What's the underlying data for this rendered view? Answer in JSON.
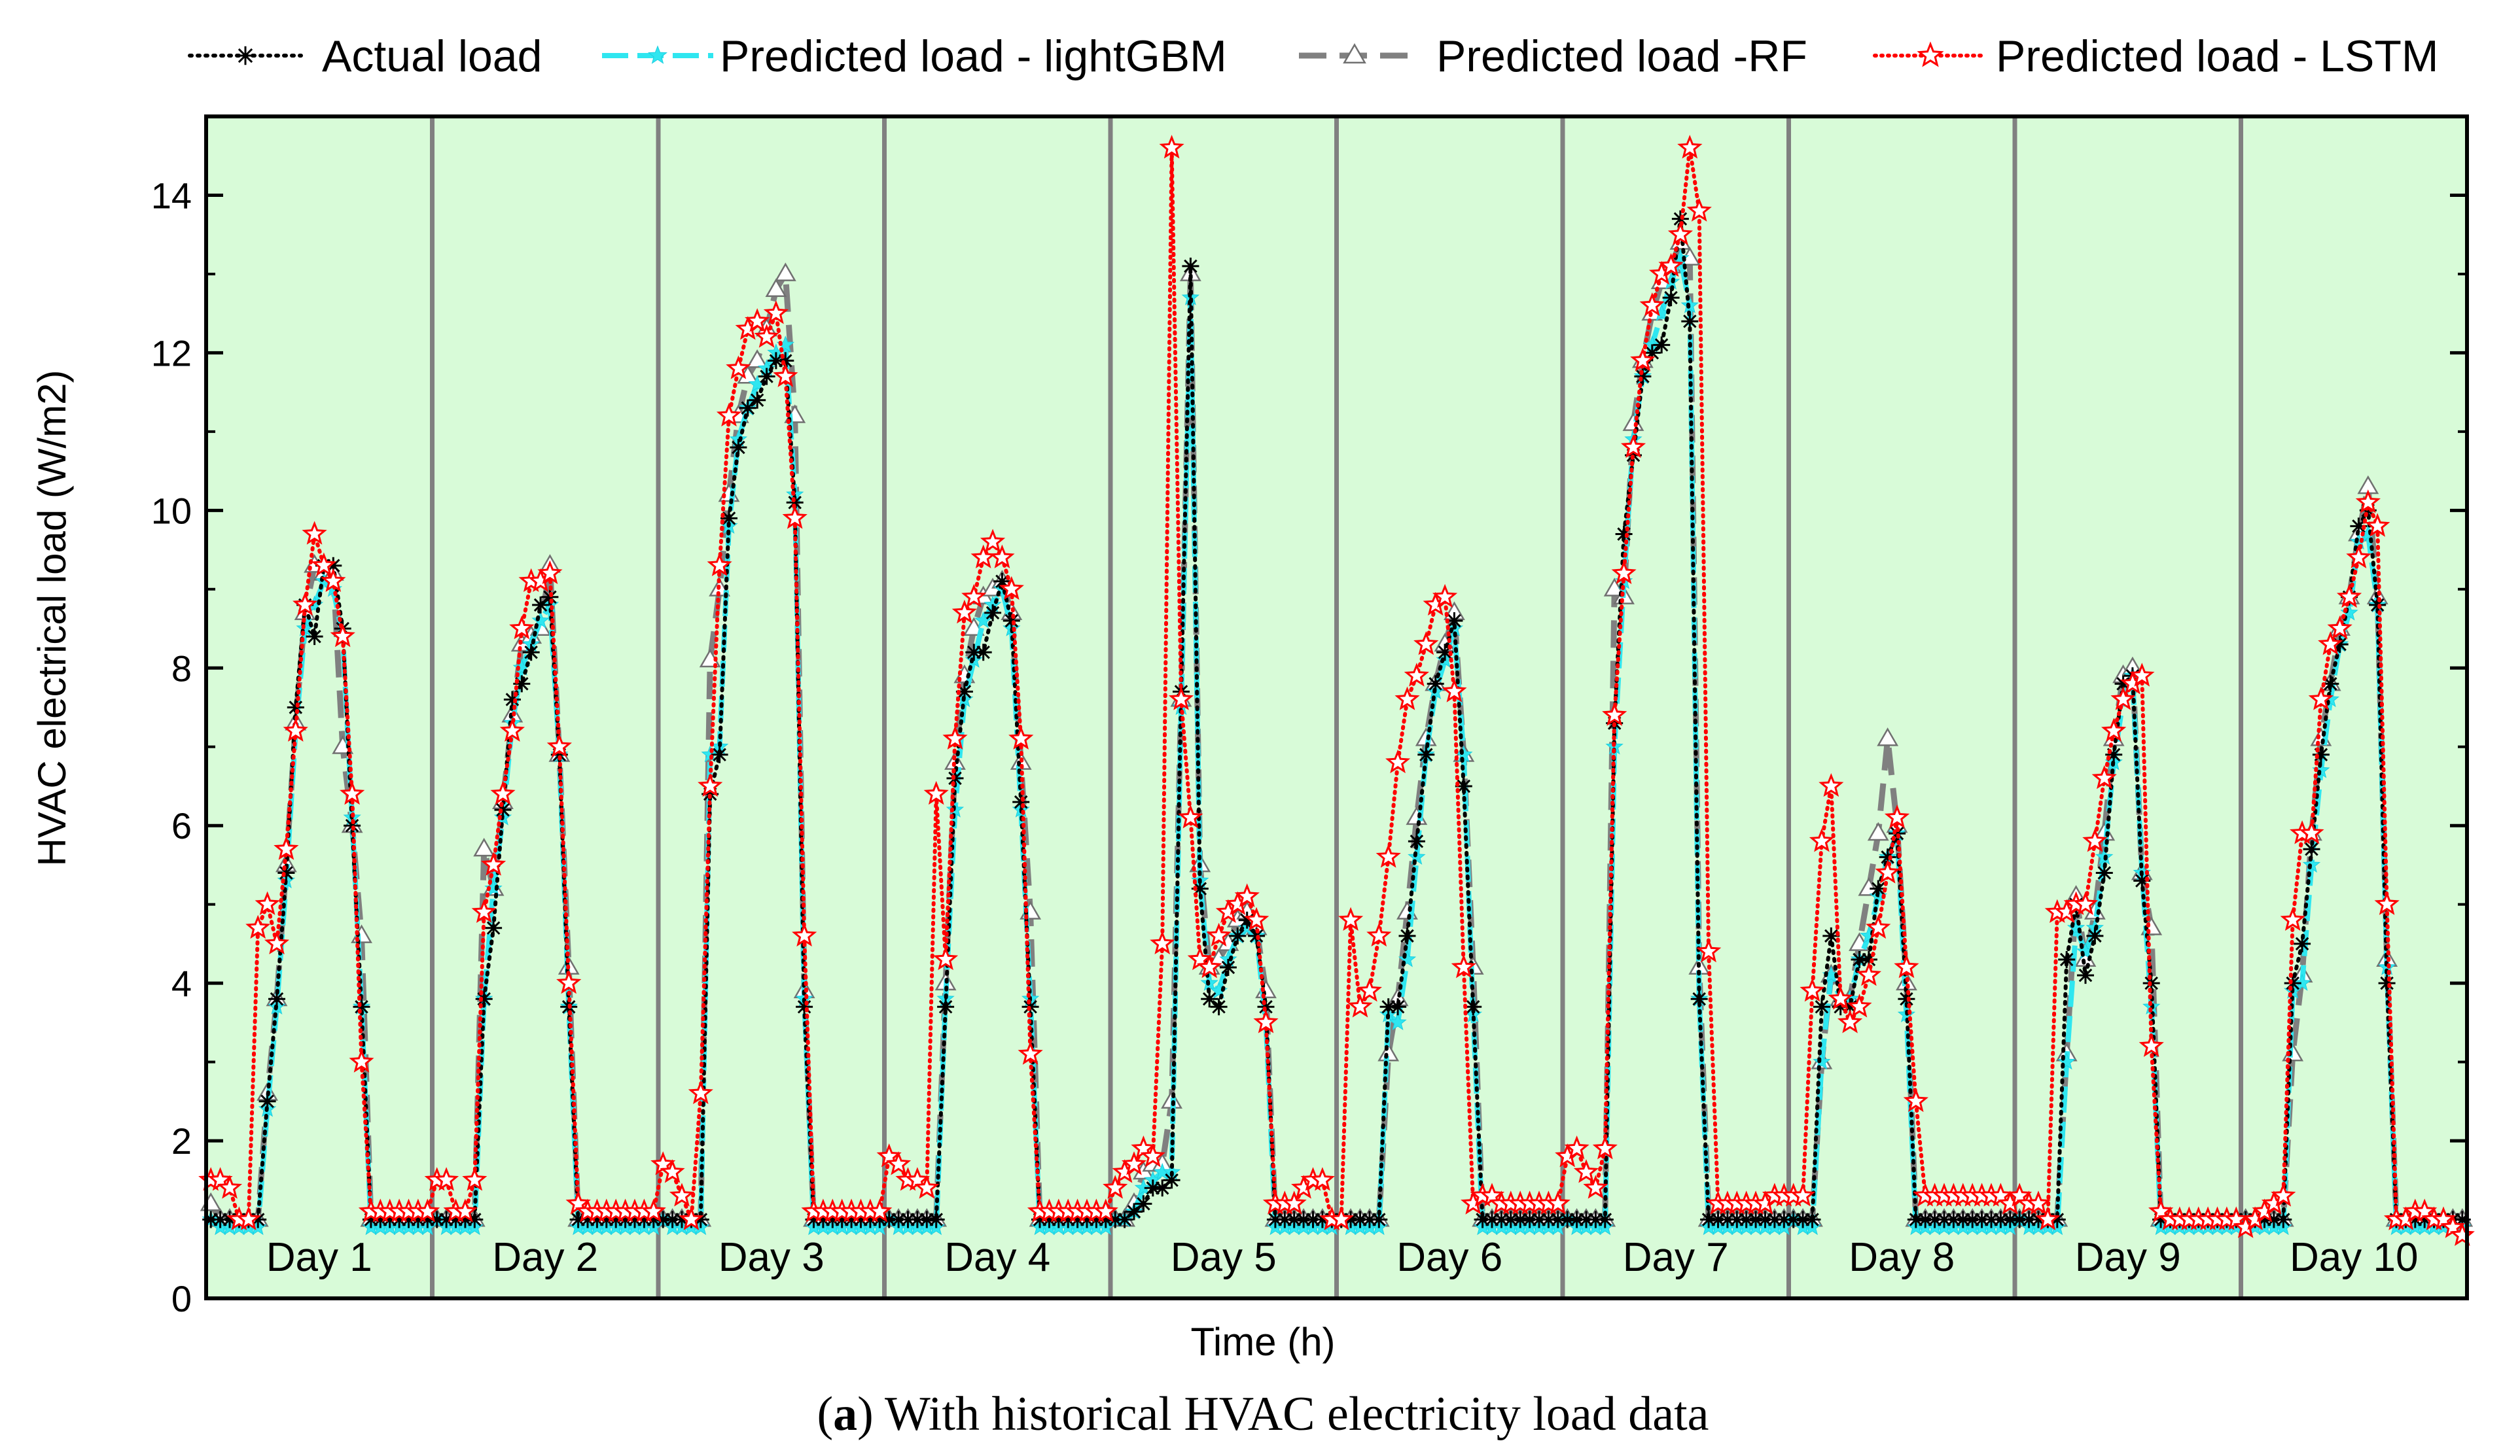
{
  "chart_data": {
    "type": "line",
    "title": "",
    "xlabel": "Time (h)",
    "ylabel": "HVAC electrical load (W/m2)",
    "ylim": [
      0,
      15
    ],
    "yticks": [
      0,
      2,
      4,
      6,
      8,
      10,
      12,
      14
    ],
    "yticks_minor": [
      1,
      3,
      5,
      7,
      9,
      11,
      13
    ],
    "hours_per_day": 24,
    "days": [
      "Day 1",
      "Day 2",
      "Day 3",
      "Day 4",
      "Day 5",
      "Day 6",
      "Day 7",
      "Day 8",
      "Day 9",
      "Day 10"
    ],
    "caption": {
      "letter": "a",
      "text": " With historical HVAC electricity load data"
    },
    "legend": [
      {
        "name": "Actual load",
        "color": "#000000",
        "marker": "asterisk"
      },
      {
        "name": "Predicted load - lightGBM",
        "color": "#2fe6f0",
        "marker": "star-small"
      },
      {
        "name": "Predicted load -RF",
        "color": "#808080",
        "marker": "triangle"
      },
      {
        "name": "Predicted load - LSTM",
        "color": "#ff0000",
        "marker": "star-open"
      }
    ],
    "background_color": "#d8fbd8",
    "series": [
      {
        "name": "Actual load",
        "values": [
          1.0,
          1.0,
          1.0,
          1.0,
          1.0,
          1.0,
          2.5,
          3.8,
          5.4,
          7.5,
          8.8,
          8.4,
          9.3,
          9.3,
          8.5,
          6.0,
          3.7,
          1.0,
          1.0,
          1.0,
          1.0,
          1.0,
          1.0,
          1.0,
          1.0,
          1.0,
          1.0,
          1.0,
          1.0,
          3.8,
          4.7,
          6.2,
          7.6,
          7.8,
          8.2,
          8.8,
          8.9,
          6.9,
          3.7,
          1.0,
          1.0,
          1.0,
          1.0,
          1.0,
          1.0,
          1.0,
          1.0,
          1.0,
          1.0,
          1.0,
          1.0,
          1.0,
          1.0,
          6.4,
          6.9,
          9.9,
          10.8,
          11.3,
          11.4,
          11.7,
          11.9,
          11.9,
          10.1,
          3.7,
          1.0,
          1.0,
          1.0,
          1.0,
          1.0,
          1.0,
          1.0,
          1.0,
          1.0,
          1.0,
          1.0,
          1.0,
          1.0,
          1.0,
          3.7,
          6.6,
          7.7,
          8.2,
          8.2,
          8.7,
          9.1,
          8.6,
          6.3,
          3.7,
          1.0,
          1.0,
          1.0,
          1.0,
          1.0,
          1.0,
          1.0,
          1.0,
          1.0,
          1.0,
          1.1,
          1.2,
          1.4,
          1.4,
          1.5,
          7.7,
          13.1,
          5.2,
          3.8,
          3.7,
          4.2,
          4.6,
          4.8,
          4.6,
          3.7,
          1.0,
          1.0,
          1.0,
          1.0,
          1.0,
          1.0,
          1.0,
          1.0,
          1.0,
          1.0,
          1.0,
          1.0,
          3.7,
          3.7,
          4.6,
          5.8,
          6.9,
          7.8,
          8.2,
          8.6,
          6.5,
          3.7,
          1.0,
          1.0,
          1.0,
          1.0,
          1.0,
          1.0,
          1.0,
          1.0,
          1.0,
          1.0,
          1.0,
          1.0,
          1.0,
          1.0,
          7.3,
          9.7,
          10.7,
          11.7,
          12.0,
          12.1,
          12.7,
          13.7,
          12.4,
          3.8,
          1.0,
          1.0,
          1.0,
          1.0,
          1.0,
          1.0,
          1.0,
          1.0,
          1.0,
          1.0,
          1.0,
          1.0,
          3.7,
          4.6,
          3.7,
          3.7,
          4.3,
          4.3,
          5.2,
          5.6,
          5.9,
          3.8,
          1.0,
          1.0,
          1.0,
          1.0,
          1.0,
          1.0,
          1.0,
          1.0,
          1.0,
          1.0,
          1.0,
          1.0,
          1.0,
          1.0,
          1.0,
          1.0,
          4.3,
          5.0,
          4.1,
          4.6,
          5.4,
          6.9,
          7.8,
          7.9,
          5.3,
          4.0,
          1.0,
          1.0,
          1.0,
          1.0,
          1.0,
          1.0,
          1.0,
          1.0,
          1.0,
          1.0,
          1.0,
          1.0,
          1.0,
          1.0,
          4.0,
          4.5,
          5.7,
          6.9,
          7.8,
          8.3,
          8.9,
          9.8,
          10.0,
          8.8,
          4.0,
          1.0,
          1.0,
          1.0,
          1.0,
          1.0,
          1.0,
          1.0,
          1.0
        ]
      },
      {
        "name": "Predicted load - lightGBM",
        "values": [
          1.0,
          0.9,
          0.9,
          0.9,
          0.9,
          0.9,
          2.4,
          3.7,
          5.3,
          7.2,
          8.5,
          8.8,
          9.1,
          9.0,
          8.4,
          6.1,
          3.7,
          0.9,
          0.9,
          0.9,
          0.9,
          0.9,
          0.9,
          0.9,
          1.0,
          0.9,
          0.9,
          0.9,
          0.9,
          3.8,
          5.2,
          6.1,
          7.3,
          8.0,
          8.3,
          8.6,
          8.8,
          6.9,
          3.7,
          0.9,
          0.9,
          0.9,
          0.9,
          0.9,
          0.9,
          0.9,
          0.9,
          0.9,
          1.0,
          0.9,
          0.9,
          0.9,
          0.9,
          6.9,
          7.0,
          9.8,
          10.9,
          11.3,
          11.6,
          11.8,
          12.0,
          12.1,
          10.2,
          3.8,
          0.9,
          0.9,
          0.9,
          0.9,
          0.9,
          0.9,
          0.9,
          0.9,
          1.0,
          0.9,
          0.9,
          0.9,
          0.9,
          0.9,
          3.8,
          6.2,
          7.6,
          8.1,
          8.6,
          8.8,
          9.0,
          8.5,
          6.2,
          3.8,
          0.9,
          0.9,
          0.9,
          0.9,
          0.9,
          0.9,
          0.9,
          0.9,
          1.0,
          1.0,
          1.1,
          1.4,
          1.5,
          1.6,
          1.6,
          7.5,
          12.7,
          5.3,
          4.0,
          3.9,
          4.3,
          4.6,
          4.7,
          4.6,
          3.5,
          0.9,
          0.9,
          0.9,
          0.9,
          0.9,
          0.9,
          0.9,
          1.0,
          0.9,
          0.9,
          0.9,
          0.9,
          3.6,
          3.5,
          4.3,
          5.6,
          6.9,
          7.7,
          8.1,
          8.5,
          6.9,
          3.6,
          0.9,
          0.9,
          0.9,
          0.9,
          0.9,
          0.9,
          0.9,
          0.9,
          0.9,
          1.0,
          0.9,
          0.9,
          0.9,
          0.9,
          7.0,
          9.1,
          10.9,
          11.7,
          12.1,
          12.5,
          12.9,
          13.2,
          12.6,
          3.8,
          0.9,
          0.9,
          0.9,
          0.9,
          0.9,
          0.9,
          0.9,
          0.9,
          0.9,
          1.0,
          0.9,
          0.9,
          3.0,
          4.1,
          3.8,
          3.8,
          4.3,
          4.6,
          5.1,
          5.6,
          5.9,
          3.6,
          0.9,
          0.9,
          0.9,
          0.9,
          0.9,
          0.9,
          0.9,
          0.9,
          0.9,
          0.9,
          0.9,
          1.0,
          0.9,
          0.9,
          0.9,
          0.9,
          3.0,
          4.7,
          4.4,
          4.7,
          5.6,
          6.8,
          7.6,
          7.9,
          5.4,
          3.7,
          0.9,
          0.9,
          0.9,
          0.9,
          0.9,
          0.9,
          0.9,
          0.9,
          0.9,
          1.0,
          0.9,
          0.9,
          0.9,
          0.9,
          3.9,
          4.0,
          5.5,
          6.7,
          7.6,
          8.3,
          8.7,
          9.6,
          9.7,
          8.8,
          4.2,
          0.9,
          0.9,
          0.9,
          0.9,
          0.9,
          0.9,
          0.9,
          0.9
        ]
      },
      {
        "name": "Predicted load -RF",
        "values": [
          1.2,
          1.0,
          1.0,
          1.0,
          1.0,
          1.0,
          2.6,
          3.8,
          5.5,
          7.3,
          8.7,
          9.3,
          9.2,
          9.2,
          7.0,
          6.0,
          4.6,
          1.0,
          1.0,
          1.0,
          1.0,
          1.0,
          1.0,
          1.0,
          1.0,
          1.0,
          1.0,
          1.0,
          1.0,
          5.7,
          5.2,
          6.3,
          7.4,
          8.3,
          8.4,
          8.5,
          9.3,
          6.9,
          4.2,
          1.0,
          1.0,
          1.0,
          1.0,
          1.0,
          1.0,
          1.0,
          1.0,
          1.0,
          1.0,
          1.0,
          1.0,
          1.0,
          1.0,
          8.1,
          9.0,
          10.2,
          11.2,
          11.7,
          11.9,
          12.3,
          12.8,
          13.0,
          11.2,
          3.9,
          1.0,
          1.0,
          1.0,
          1.0,
          1.0,
          1.0,
          1.0,
          1.0,
          1.0,
          1.0,
          1.0,
          1.0,
          1.0,
          1.0,
          4.0,
          6.8,
          7.9,
          8.5,
          8.9,
          9.0,
          9.1,
          8.7,
          6.8,
          4.9,
          1.0,
          1.0,
          1.0,
          1.0,
          1.0,
          1.0,
          1.0,
          1.0,
          1.0,
          1.0,
          1.2,
          1.6,
          1.7,
          1.7,
          2.5,
          7.6,
          13.0,
          5.5,
          4.2,
          4.3,
          4.5,
          4.8,
          4.9,
          4.7,
          3.9,
          1.0,
          1.0,
          1.0,
          1.0,
          1.0,
          1.0,
          1.0,
          1.0,
          1.0,
          1.0,
          1.0,
          1.0,
          3.1,
          3.8,
          4.9,
          6.1,
          7.1,
          7.8,
          8.3,
          8.7,
          6.9,
          4.2,
          1.0,
          1.0,
          1.0,
          1.0,
          1.0,
          1.0,
          1.0,
          1.0,
          1.0,
          1.0,
          1.0,
          1.0,
          1.0,
          1.0,
          9.0,
          8.9,
          11.1,
          11.9,
          12.5,
          12.9,
          13.1,
          13.4,
          13.2,
          4.2,
          1.0,
          1.0,
          1.0,
          1.0,
          1.0,
          1.0,
          1.0,
          1.0,
          1.0,
          1.0,
          1.0,
          1.0,
          3.0,
          4.1,
          3.8,
          3.8,
          4.5,
          5.2,
          5.9,
          7.1,
          6.0,
          4.0,
          1.0,
          1.0,
          1.0,
          1.0,
          1.0,
          1.0,
          1.0,
          1.0,
          1.0,
          1.0,
          1.0,
          1.0,
          1.0,
          1.0,
          1.0,
          1.0,
          3.1,
          5.1,
          4.3,
          4.9,
          5.9,
          7.1,
          7.9,
          8.0,
          5.4,
          4.7,
          1.0,
          1.0,
          1.0,
          1.0,
          1.0,
          1.0,
          1.0,
          1.0,
          1.0,
          1.0,
          1.0,
          1.0,
          1.0,
          1.0,
          3.1,
          4.1,
          5.9,
          7.1,
          7.8,
          8.5,
          8.9,
          9.7,
          10.3,
          8.9,
          4.3,
          1.0,
          1.0,
          1.0,
          1.0,
          1.0,
          1.0,
          1.0,
          1.0
        ]
      },
      {
        "name": "Predicted load - LSTM",
        "values": [
          1.5,
          1.5,
          1.4,
          1.0,
          1.0,
          4.7,
          5.0,
          4.5,
          5.7,
          7.2,
          8.8,
          9.7,
          9.3,
          9.1,
          8.4,
          6.4,
          3.0,
          1.1,
          1.1,
          1.1,
          1.1,
          1.1,
          1.1,
          1.1,
          1.5,
          1.5,
          1.1,
          1.1,
          1.5,
          4.9,
          5.5,
          6.4,
          7.2,
          8.5,
          9.1,
          9.1,
          9.2,
          7.0,
          4.0,
          1.2,
          1.1,
          1.1,
          1.1,
          1.1,
          1.1,
          1.1,
          1.1,
          1.1,
          1.7,
          1.6,
          1.3,
          1.0,
          2.6,
          6.5,
          9.3,
          11.2,
          11.8,
          12.3,
          12.4,
          12.2,
          12.5,
          11.7,
          9.9,
          4.6,
          1.1,
          1.1,
          1.1,
          1.1,
          1.1,
          1.1,
          1.1,
          1.1,
          1.8,
          1.7,
          1.5,
          1.5,
          1.4,
          6.4,
          4.3,
          7.1,
          8.7,
          8.9,
          9.4,
          9.6,
          9.4,
          9.0,
          7.1,
          3.1,
          1.1,
          1.1,
          1.1,
          1.1,
          1.1,
          1.1,
          1.1,
          1.1,
          1.4,
          1.6,
          1.7,
          1.9,
          1.8,
          4.5,
          14.6,
          7.6,
          6.1,
          4.3,
          4.2,
          4.6,
          4.9,
          5.0,
          5.1,
          4.8,
          3.5,
          1.2,
          1.2,
          1.2,
          1.4,
          1.5,
          1.5,
          1.0,
          1.0,
          4.8,
          3.7,
          3.9,
          4.6,
          5.6,
          6.8,
          7.6,
          7.9,
          8.3,
          8.8,
          8.9,
          7.7,
          4.2,
          1.2,
          1.3,
          1.3,
          1.2,
          1.2,
          1.2,
          1.2,
          1.2,
          1.2,
          1.2,
          1.8,
          1.9,
          1.6,
          1.4,
          1.9,
          7.4,
          9.2,
          10.8,
          11.9,
          12.6,
          13.0,
          13.1,
          13.5,
          14.6,
          13.8,
          4.4,
          1.2,
          1.2,
          1.2,
          1.2,
          1.2,
          1.2,
          1.3,
          1.3,
          1.3,
          1.3,
          3.9,
          5.8,
          6.5,
          3.8,
          3.5,
          3.7,
          4.1,
          4.7,
          5.4,
          6.1,
          4.2,
          2.5,
          1.3,
          1.3,
          1.3,
          1.3,
          1.3,
          1.3,
          1.3,
          1.3,
          1.3,
          1.2,
          1.3,
          1.2,
          1.2,
          1.0,
          4.9,
          4.9,
          5.0,
          5.0,
          5.8,
          6.6,
          7.2,
          7.6,
          7.8,
          7.9,
          3.2,
          1.1,
          1.0,
          1.0,
          1.0,
          1.0,
          1.0,
          1.0,
          1.0,
          1.0,
          0.9,
          1.0,
          1.1,
          1.2,
          1.3,
          4.8,
          5.9,
          5.9,
          7.6,
          8.3,
          8.5,
          8.9,
          9.4,
          10.1,
          9.8,
          5.0,
          1.0,
          1.0,
          1.1,
          1.1,
          1.0,
          1.0,
          0.9,
          0.8
        ]
      }
    ]
  }
}
